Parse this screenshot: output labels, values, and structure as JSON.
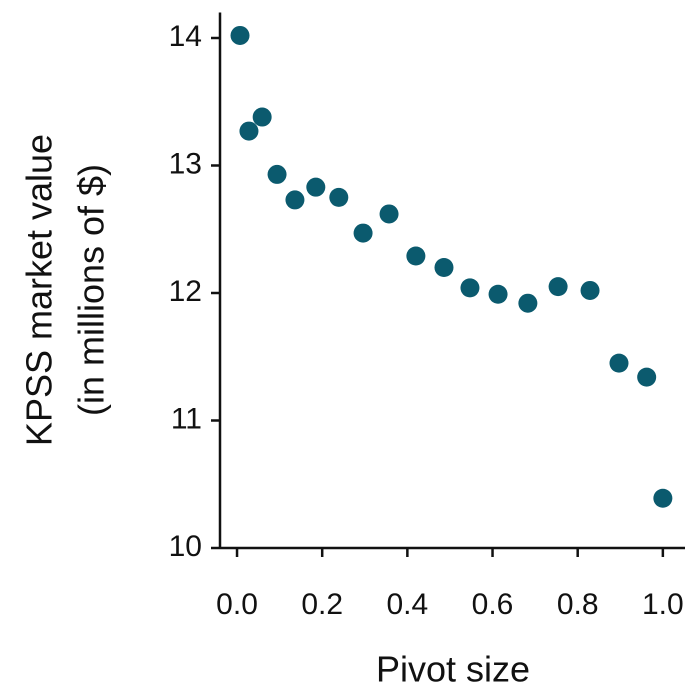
{
  "chart_data": {
    "type": "scatter",
    "xlabel": "Pivot size",
    "ylabel": [
      "KPSS market value",
      "(in millions of $)"
    ],
    "color": "#0b5a6e",
    "x": [
      0.007,
      0.028,
      0.059,
      0.094,
      0.136,
      0.185,
      0.239,
      0.296,
      0.357,
      0.42,
      0.486,
      0.547,
      0.613,
      0.683,
      0.754,
      0.829,
      0.897,
      0.962,
      1.0
    ],
    "values": [
      14.02,
      13.27,
      13.38,
      12.93,
      12.73,
      12.83,
      12.75,
      12.47,
      12.62,
      12.29,
      12.2,
      12.04,
      11.99,
      11.92,
      12.05,
      12.02,
      11.45,
      11.34,
      10.39
    ],
    "xlim": [
      -0.04,
      1.052
    ],
    "ylim": [
      10,
      14.2
    ],
    "xticks": [
      {
        "value": 0,
        "label": "0.0"
      },
      0.2,
      0.4,
      0.6,
      0.8,
      {
        "value": 1,
        "label": "1.0"
      }
    ],
    "yticks": [
      10,
      11,
      12,
      13,
      14
    ]
  }
}
